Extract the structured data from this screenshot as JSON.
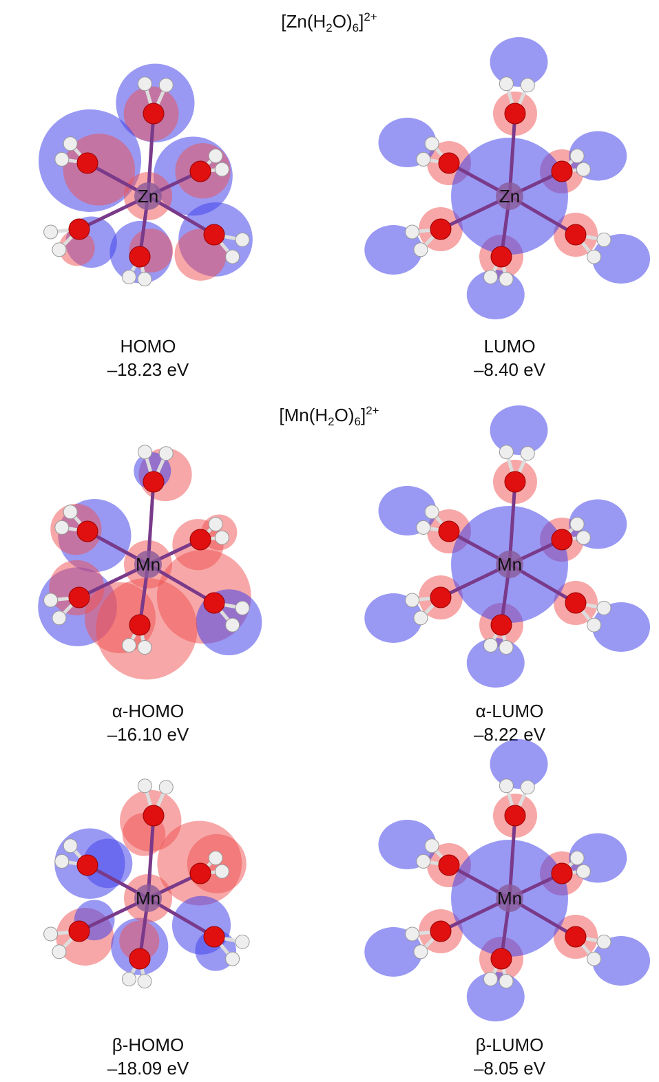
{
  "sections": [
    {
      "formula": [
        "[Zn(H",
        "2",
        "O)",
        "6",
        "]",
        "2+"
      ],
      "panels": [
        {
          "atom": "Zn",
          "label": "HOMO",
          "energy": "–18.23 eV"
        },
        {
          "atom": "Zn",
          "label": "LUMO",
          "energy": "–8.40 eV"
        }
      ]
    },
    {
      "formula": [
        "[Mn(H",
        "2",
        "O)",
        "6",
        "]",
        "2+"
      ],
      "panels": [
        {
          "atom": "Mn",
          "label": "α-HOMO",
          "energy": "–16.10 eV"
        },
        {
          "atom": "Mn",
          "label": "α-LUMO",
          "energy": "–8.22 eV"
        },
        {
          "atom": "Mn",
          "label": "β-HOMO",
          "energy": "–18.09 eV"
        },
        {
          "atom": "Mn",
          "label": "β-LUMO",
          "energy": "–8.05 eV"
        }
      ]
    }
  ]
}
